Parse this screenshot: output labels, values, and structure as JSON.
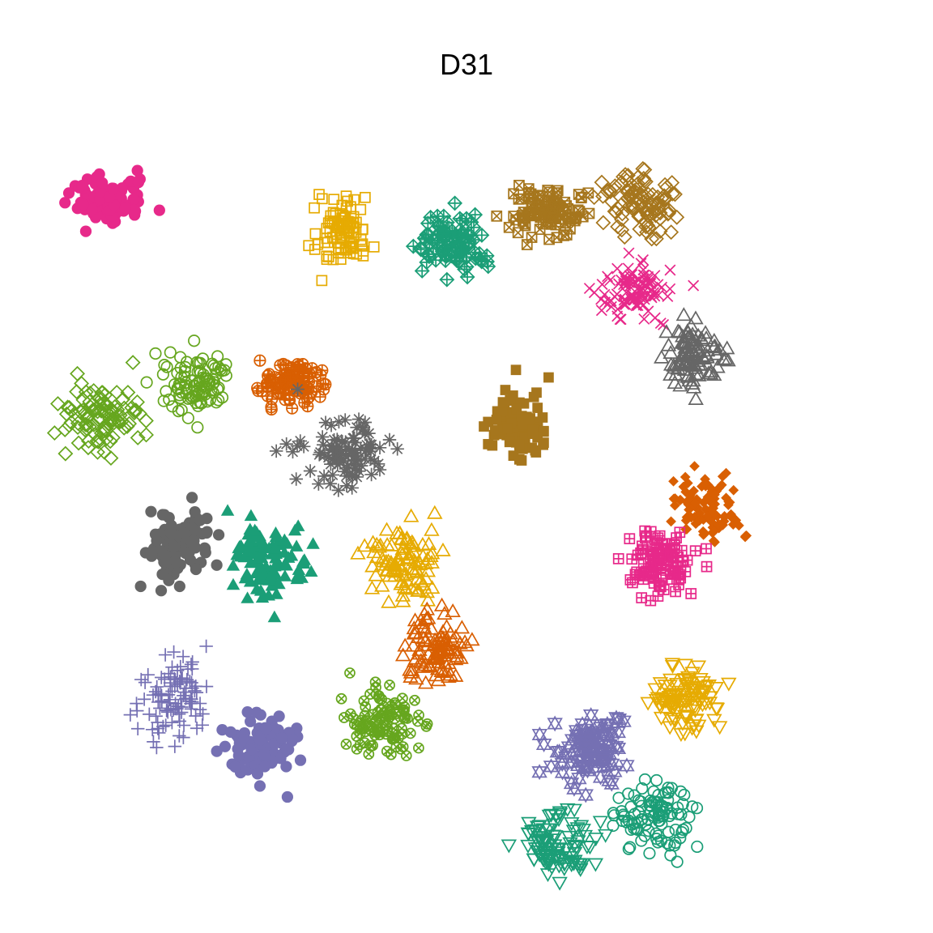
{
  "chart_data": {
    "type": "scatter",
    "title": "D31",
    "xlabel": "",
    "ylabel": "",
    "axes_visible": false,
    "grid": false,
    "legend": "none",
    "xlim": [
      2.5,
      29.5
    ],
    "ylim": [
      2.5,
      29.5
    ],
    "palette": [
      "#1B9E77",
      "#D95F02",
      "#7570B3",
      "#E7298A",
      "#66A61E",
      "#E6AB02",
      "#A6761D",
      "#666666"
    ],
    "generation": "gaussian",
    "series": [
      {
        "shape": "filled-circle",
        "color": "#E7298A",
        "center": [
          4.8,
          26.0
        ],
        "spread": [
          0.6,
          0.4
        ],
        "n": 100
      },
      {
        "shape": "open-square",
        "color": "#E6AB02",
        "center": [
          12.1,
          25.0
        ],
        "spread": [
          0.45,
          0.55
        ],
        "n": 100
      },
      {
        "shape": "diamond-plus",
        "color": "#1B9E77",
        "center": [
          15.5,
          24.6
        ],
        "spread": [
          0.55,
          0.45
        ],
        "n": 100
      },
      {
        "shape": "square-x",
        "color": "#A6761D",
        "center": [
          18.6,
          25.7
        ],
        "spread": [
          0.55,
          0.4
        ],
        "n": 100
      },
      {
        "shape": "open-diamond",
        "color": "#A6761D",
        "center": [
          21.5,
          25.9
        ],
        "spread": [
          0.55,
          0.5
        ],
        "n": 100
      },
      {
        "shape": "x-mark",
        "color": "#E7298A",
        "center": [
          21.3,
          23.1
        ],
        "spread": [
          0.55,
          0.45
        ],
        "n": 100
      },
      {
        "shape": "open-triangle",
        "color": "#666666",
        "center": [
          23.1,
          21.0
        ],
        "spread": [
          0.45,
          0.55
        ],
        "n": 100
      },
      {
        "shape": "filled-square",
        "color": "#A6761D",
        "center": [
          17.6,
          18.7
        ],
        "spread": [
          0.45,
          0.5
        ],
        "n": 100
      },
      {
        "shape": "circle-plus",
        "color": "#D95F02",
        "center": [
          10.6,
          20.1
        ],
        "spread": [
          0.55,
          0.35
        ],
        "n": 100
      },
      {
        "shape": "open-circle",
        "color": "#66A61E",
        "center": [
          7.6,
          20.0
        ],
        "spread": [
          0.55,
          0.5
        ],
        "n": 100
      },
      {
        "shape": "open-diamond",
        "color": "#66A61E",
        "center": [
          4.6,
          19.0
        ],
        "spread": [
          0.65,
          0.55
        ],
        "n": 100
      },
      {
        "shape": "asterisk",
        "color": "#666666",
        "center": [
          12.1,
          17.7
        ],
        "spread": [
          0.6,
          0.55
        ],
        "n": 100
      },
      {
        "shape": "filled-circle",
        "color": "#666666",
        "center": [
          7.0,
          14.8
        ],
        "spread": [
          0.5,
          0.55
        ],
        "n": 100
      },
      {
        "shape": "filled-triangle",
        "color": "#1B9E77",
        "center": [
          9.8,
          14.3
        ],
        "spread": [
          0.55,
          0.55
        ],
        "n": 100
      },
      {
        "shape": "open-triangle",
        "color": "#E6AB02",
        "center": [
          14.0,
          14.2
        ],
        "spread": [
          0.5,
          0.6
        ],
        "n": 100
      },
      {
        "shape": "filled-diamond",
        "color": "#D95F02",
        "center": [
          23.4,
          16.0
        ],
        "spread": [
          0.5,
          0.5
        ],
        "n": 100
      },
      {
        "shape": "square-plus",
        "color": "#E7298A",
        "center": [
          22.0,
          14.2
        ],
        "spread": [
          0.5,
          0.5
        ],
        "n": 100
      },
      {
        "shape": "open-triangle",
        "color": "#D95F02",
        "center": [
          15.0,
          11.3
        ],
        "spread": [
          0.5,
          0.55
        ],
        "n": 100
      },
      {
        "shape": "plus",
        "color": "#7570B3",
        "center": [
          7.0,
          9.9
        ],
        "spread": [
          0.6,
          0.6
        ],
        "n": 100
      },
      {
        "shape": "filled-circle",
        "color": "#7570B3",
        "center": [
          9.7,
          8.3
        ],
        "spread": [
          0.55,
          0.55
        ],
        "n": 100
      },
      {
        "shape": "circle-x",
        "color": "#66A61E",
        "center": [
          13.4,
          9.0
        ],
        "spread": [
          0.55,
          0.55
        ],
        "n": 100
      },
      {
        "shape": "open-triangle-down",
        "color": "#E6AB02",
        "center": [
          22.8,
          9.8
        ],
        "spread": [
          0.5,
          0.55
        ],
        "n": 100
      },
      {
        "shape": "star-of-david",
        "color": "#7570B3",
        "center": [
          20.0,
          8.1
        ],
        "spread": [
          0.6,
          0.5
        ],
        "n": 100
      },
      {
        "shape": "open-circle",
        "color": "#1B9E77",
        "center": [
          21.9,
          5.9
        ],
        "spread": [
          0.6,
          0.55
        ],
        "n": 100
      },
      {
        "shape": "open-triangle-down",
        "color": "#1B9E77",
        "center": [
          18.9,
          5.1
        ],
        "spread": [
          0.6,
          0.6
        ],
        "n": 100
      }
    ]
  }
}
